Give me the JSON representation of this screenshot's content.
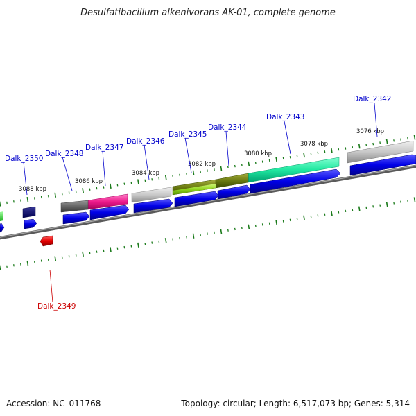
{
  "title": "Desulfatibacillum alkenivorans AK-01, complete genome",
  "footer": {
    "accession": "Accession: NC_011768",
    "summary": "Topology: circular; Length: 6,517,073 bp; Genes: 5,314"
  },
  "colors": {
    "forward_gene": "#0000ee",
    "reverse_gene": "#ee0000",
    "backbone": "#808080",
    "tick": "#1a7a1a",
    "forward_label": "#0000cc",
    "reverse_label": "#cc0000"
  },
  "kbp_labels": [
    "3076 kbp",
    "3078 kbp",
    "3080 kbp",
    "3082 kbp",
    "3084 kbp",
    "3086 kbp",
    "3088 kbp"
  ],
  "genes": [
    {
      "label": "Dalk_2342",
      "strand": "forward"
    },
    {
      "label": "Dalk_2343",
      "strand": "forward"
    },
    {
      "label": "Dalk_2344",
      "strand": "forward"
    },
    {
      "label": "Dalk_2345",
      "strand": "forward"
    },
    {
      "label": "Dalk_2346",
      "strand": "forward"
    },
    {
      "label": "Dalk_2347",
      "strand": "forward"
    },
    {
      "label": "Dalk_2348",
      "strand": "forward"
    },
    {
      "label": "Dalk_2349",
      "strand": "reverse"
    },
    {
      "label": "Dalk_2350",
      "strand": "forward"
    }
  ]
}
